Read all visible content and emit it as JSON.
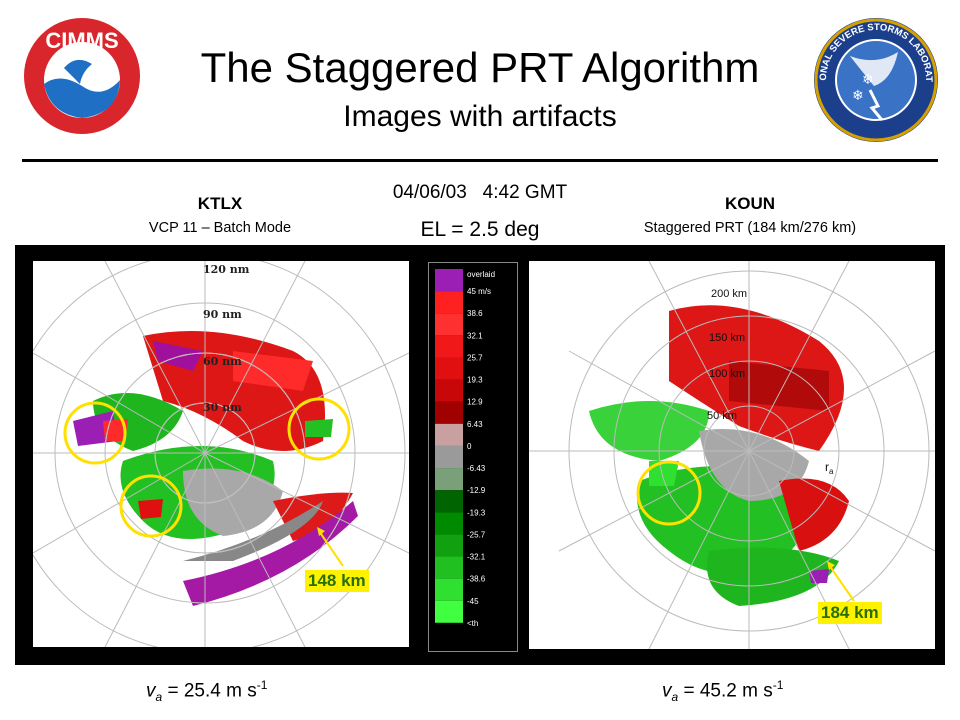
{
  "header": {
    "title": "The Staggered PRT Algorithm",
    "subtitle": "Images with artifacts",
    "left_logo": {
      "text": "CIMMS",
      "icon": "cimms-noaa-logo"
    },
    "right_logo": {
      "text": "NATIONAL SEVERE STORMS LABORATORY",
      "icon": "nssl-logo"
    }
  },
  "left": {
    "radar": "KTLX",
    "mode": "VCP 11 – Batch Mode",
    "rings": [
      "120 nm",
      "90 nm",
      "60 nm",
      "30 nm"
    ],
    "range_label": "148 km",
    "va_prefix": "v",
    "va_sub": "a",
    "va_value": " = 25.4 m s",
    "va_sup": "-1"
  },
  "center": {
    "datetime": "04/06/03   4:42 GMT",
    "elevation": "EL = 2.5 deg"
  },
  "right": {
    "radar": "KOUN",
    "mode": "Staggered PRT (184 km/276 km)",
    "rings": [
      "200 km",
      "150 km",
      "100 km",
      "50 km"
    ],
    "ra_label": "r",
    "ra_sub": "a",
    "range_label": "184 km",
    "va_prefix": "v",
    "va_sub": "a",
    "va_value": " = 45.2 m s",
    "va_sup": "-1"
  },
  "colorbar": {
    "labels": [
      "overlaid",
      "45 m/s",
      "38.6",
      "32.1",
      "25.7",
      "19.3",
      "12.9",
      "6.43",
      "0",
      "-6.43",
      "-12.9",
      "-19.3",
      "-25.7",
      "-32.1",
      "-38.6",
      "-45",
      "<th"
    ],
    "colors": [
      "#9b1fb5",
      "#ff2020",
      "#ff3030",
      "#f01818",
      "#e01010",
      "#c80808",
      "#a00000",
      "#c8a0a0",
      "#9a9a9a",
      "#7aa07a",
      "#006400",
      "#008a00",
      "#10a010",
      "#20c020",
      "#30e030",
      "#40ff40",
      "#000000"
    ]
  }
}
